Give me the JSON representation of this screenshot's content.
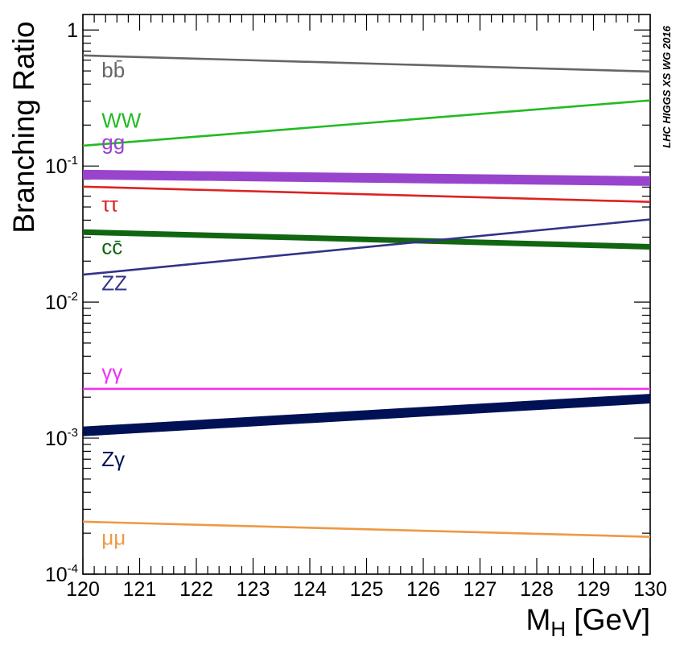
{
  "chart_data": {
    "type": "line",
    "title": "",
    "credit": "LHC HIGGS XS WG 2016",
    "xlabel": "M",
    "xlabel_subscript": "H",
    "xlabel_unit": " [GeV]",
    "ylabel": "Branching Ratio",
    "xlim": [
      120,
      130
    ],
    "ylim": [
      0.0001,
      1.3
    ],
    "yscale": "log",
    "grid": false,
    "x_ticks": [
      {
        "value": 120,
        "label": "120"
      },
      {
        "value": 121,
        "label": "121"
      },
      {
        "value": 122,
        "label": "122"
      },
      {
        "value": 123,
        "label": "123"
      },
      {
        "value": 124,
        "label": "124"
      },
      {
        "value": 125,
        "label": "125"
      },
      {
        "value": 126,
        "label": "126"
      },
      {
        "value": 127,
        "label": "127"
      },
      {
        "value": 128,
        "label": "128"
      },
      {
        "value": 129,
        "label": "129"
      },
      {
        "value": 130,
        "label": "130"
      }
    ],
    "y_ticks": [
      {
        "value": 1,
        "base": "1",
        "exp": ""
      },
      {
        "value": 0.1,
        "base": "10",
        "exp": "-1"
      },
      {
        "value": 0.01,
        "base": "10",
        "exp": "-2"
      },
      {
        "value": 0.001,
        "base": "10",
        "exp": "-3"
      },
      {
        "value": 0.0001,
        "base": "10",
        "exp": "-4"
      }
    ],
    "series": [
      {
        "name": "bb̄",
        "color": "#666666",
        "x": [
          120,
          130
        ],
        "values": [
          0.65,
          0.495
        ],
        "weight": "thin",
        "label_at": [
          120.5,
          0.45
        ]
      },
      {
        "name": "WW",
        "color": "#22bb22",
        "x": [
          120,
          130
        ],
        "values": [
          0.141,
          0.304
        ],
        "weight": "thin",
        "label_at": [
          120.5,
          0.192
        ]
      },
      {
        "name": "gg",
        "color": "#9944cc",
        "x": [
          120,
          130
        ],
        "values": [
          0.0865,
          0.0775
        ],
        "weight": "thick",
        "label_at": [
          120.5,
          0.133
        ]
      },
      {
        "name": "ττ",
        "color": "#dd2222",
        "x": [
          120,
          130
        ],
        "values": [
          0.0705,
          0.0545
        ],
        "weight": "thin",
        "label_at": [
          120.5,
          0.0465
        ]
      },
      {
        "name": "cc̄",
        "color": "#116611",
        "x": [
          120,
          130
        ],
        "values": [
          0.0327,
          0.0255
        ],
        "weight": "medium",
        "label_at": [
          120.5,
          0.0225
        ]
      },
      {
        "name": "ZZ",
        "color": "#333388",
        "x": [
          120,
          130
        ],
        "values": [
          0.0159,
          0.0405
        ],
        "weight": "thin",
        "label_at": [
          120.5,
          0.0122
        ]
      },
      {
        "name": "γγ",
        "color": "#ee33ee",
        "x": [
          120,
          130
        ],
        "values": [
          0.0023,
          0.0023
        ],
        "weight": "thin",
        "label_at": [
          120.5,
          0.0027
        ]
      },
      {
        "name": "Zγ",
        "color": "#001155",
        "x": [
          120,
          130
        ],
        "values": [
          0.00112,
          0.00195
        ],
        "weight": "thick",
        "label_at": [
          120.5,
          0.00062
        ]
      },
      {
        "name": "μμ",
        "color": "#ee9944",
        "x": [
          120,
          130
        ],
        "values": [
          0.000243,
          0.000188
        ],
        "weight": "thin",
        "label_at": [
          120.5,
          0.000165
        ]
      }
    ]
  }
}
